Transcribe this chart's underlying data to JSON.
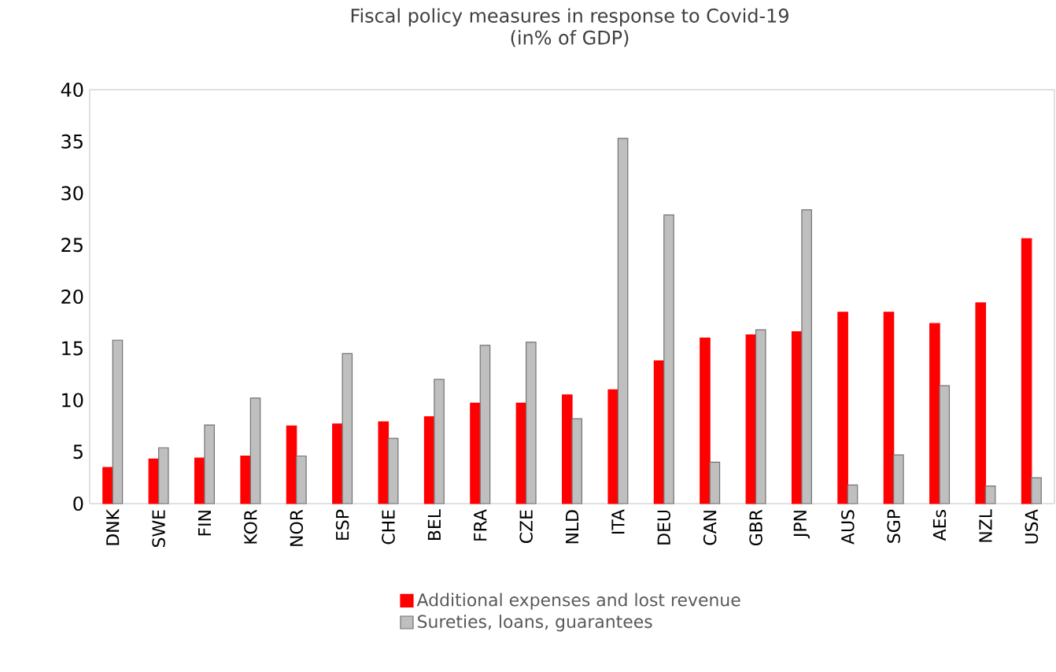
{
  "chart_data": {
    "type": "bar",
    "title": "Fiscal policy measures in response to Covid-19\n(in% of GDP)",
    "categories": [
      "DNK",
      "SWE",
      "FIN",
      "KOR",
      "NOR",
      "ESP",
      "CHE",
      "BEL",
      "FRA",
      "CZE",
      "NLD",
      "ITA",
      "DEU",
      "CAN",
      "GBR",
      "JPN",
      "AUS",
      "SGP",
      "AEs",
      "NZL",
      "USA"
    ],
    "series": [
      {
        "name": "Additional expenses and lost revenue",
        "color": "#ff0000",
        "values": [
          3.5,
          4.3,
          4.4,
          4.6,
          7.5,
          7.7,
          7.9,
          8.4,
          9.7,
          9.7,
          10.5,
          11.0,
          13.8,
          16.0,
          16.3,
          16.6,
          18.5,
          18.5,
          17.4,
          19.4,
          25.6
        ]
      },
      {
        "name": "Sureties, loans, guarantees",
        "color": "#bfbfbf",
        "values": [
          15.8,
          5.4,
          7.6,
          10.2,
          4.6,
          14.5,
          6.3,
          12.0,
          15.3,
          15.6,
          8.2,
          35.3,
          27.9,
          4.0,
          16.8,
          28.4,
          1.8,
          4.7,
          11.4,
          1.7,
          2.5
        ]
      }
    ],
    "ylim": [
      0,
      40
    ],
    "yticks": [
      0,
      5,
      10,
      15,
      20,
      25,
      30,
      35,
      40
    ],
    "legend": "bottom"
  }
}
